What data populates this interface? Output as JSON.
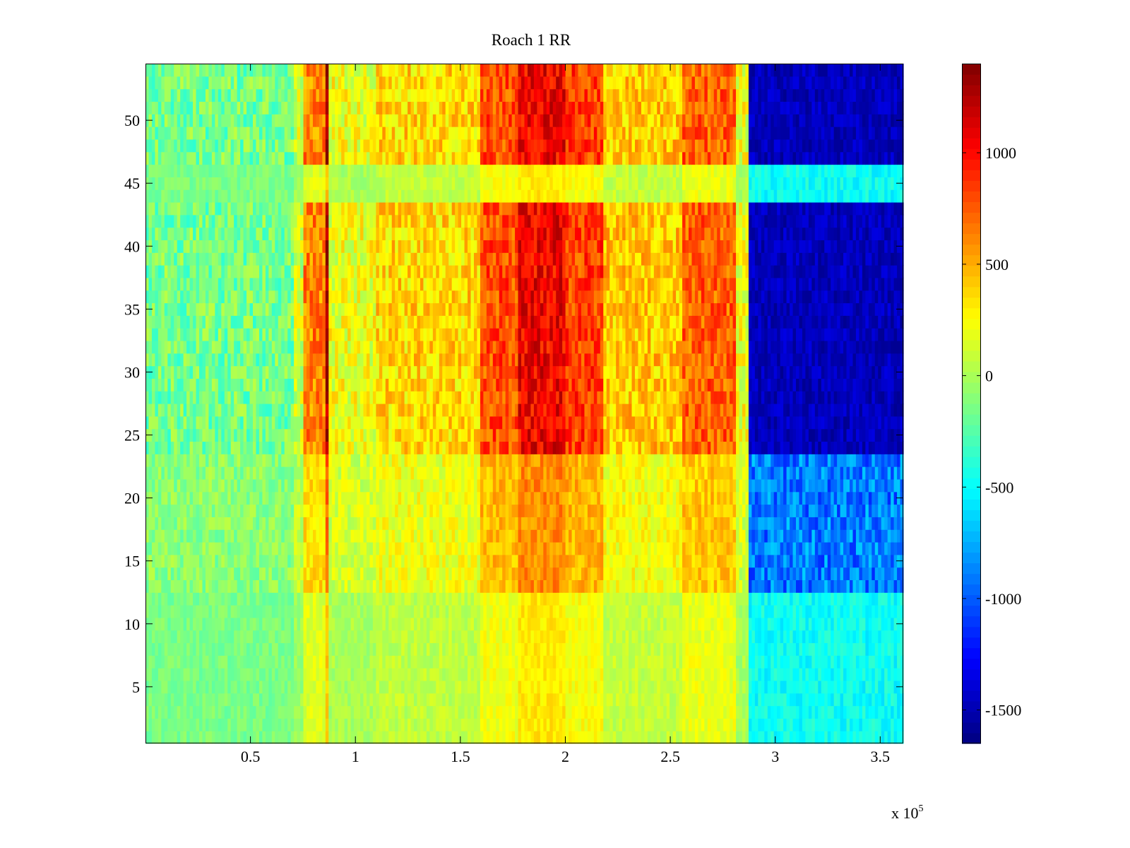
{
  "chart_data": {
    "type": "heatmap",
    "title": "Roach 1 RR",
    "xlabel": "",
    "ylabel": "",
    "x_multiplier": {
      "base": "x 10",
      "exponent": "5"
    },
    "xlim": [
      0,
      361000
    ],
    "ylim": [
      0.5,
      54.5
    ],
    "x_ticks": [
      {
        "value": 0.5,
        "label": "0.5"
      },
      {
        "value": 1,
        "label": "1"
      },
      {
        "value": 1.5,
        "label": "1.5"
      },
      {
        "value": 2,
        "label": "2"
      },
      {
        "value": 2.5,
        "label": "2.5"
      },
      {
        "value": 3,
        "label": "3"
      },
      {
        "value": 3.5,
        "label": "3.5"
      }
    ],
    "y_ticks": [
      {
        "value": 5,
        "label": "5"
      },
      {
        "value": 10,
        "label": "10"
      },
      {
        "value": 15,
        "label": "15"
      },
      {
        "value": 20,
        "label": "20"
      },
      {
        "value": 25,
        "label": "25"
      },
      {
        "value": 30,
        "label": "30"
      },
      {
        "value": 35,
        "label": "35"
      },
      {
        "value": 40,
        "label": "40"
      },
      {
        "value": 45,
        "label": "45"
      },
      {
        "value": 50,
        "label": "50"
      }
    ],
    "colorbar": {
      "range": [
        -1650,
        1400
      ],
      "colormap": "jet",
      "ticks": [
        {
          "value": 1000,
          "label": "1000"
        },
        {
          "value": 500,
          "label": "500"
        },
        {
          "value": 0,
          "label": "0"
        },
        {
          "value": -500,
          "label": "-500"
        },
        {
          "value": -1000,
          "label": "-1000"
        },
        {
          "value": -1500,
          "label": "-1500"
        }
      ]
    },
    "rows": 54,
    "column_segments": [
      {
        "x": [
          0,
          70000
        ],
        "level": -150
      },
      {
        "x": [
          70000,
          75000
        ],
        "level": 100
      },
      {
        "x": [
          75000,
          85000
        ],
        "level": 600
      },
      {
        "x": [
          85000,
          87000
        ],
        "level": 1200
      },
      {
        "x": [
          87000,
          110000
        ],
        "level": 200
      },
      {
        "x": [
          110000,
          160000
        ],
        "level": 350
      },
      {
        "x": [
          160000,
          178000
        ],
        "level": 750
      },
      {
        "x": [
          178000,
          200000
        ],
        "level": 1000
      },
      {
        "x": [
          200000,
          218000
        ],
        "level": 800
      },
      {
        "x": [
          218000,
          255000
        ],
        "level": 400
      },
      {
        "x": [
          255000,
          282000
        ],
        "level": 700
      },
      {
        "x": [
          282000,
          288000
        ],
        "level": 200
      },
      {
        "x": [
          288000,
          361000
        ],
        "level": -1300
      }
    ],
    "row_bands": [
      {
        "rows": [
          1,
          12
        ],
        "modifier": "low"
      },
      {
        "rows": [
          13,
          23
        ],
        "modifier": "mid"
      },
      {
        "rows": [
          24,
          43
        ],
        "modifier": "high"
      },
      {
        "rows": [
          44,
          46
        ],
        "modifier": "low"
      },
      {
        "rows": [
          47,
          54
        ],
        "modifier": "high"
      }
    ],
    "grid": false,
    "legend": "colorbar-right"
  }
}
